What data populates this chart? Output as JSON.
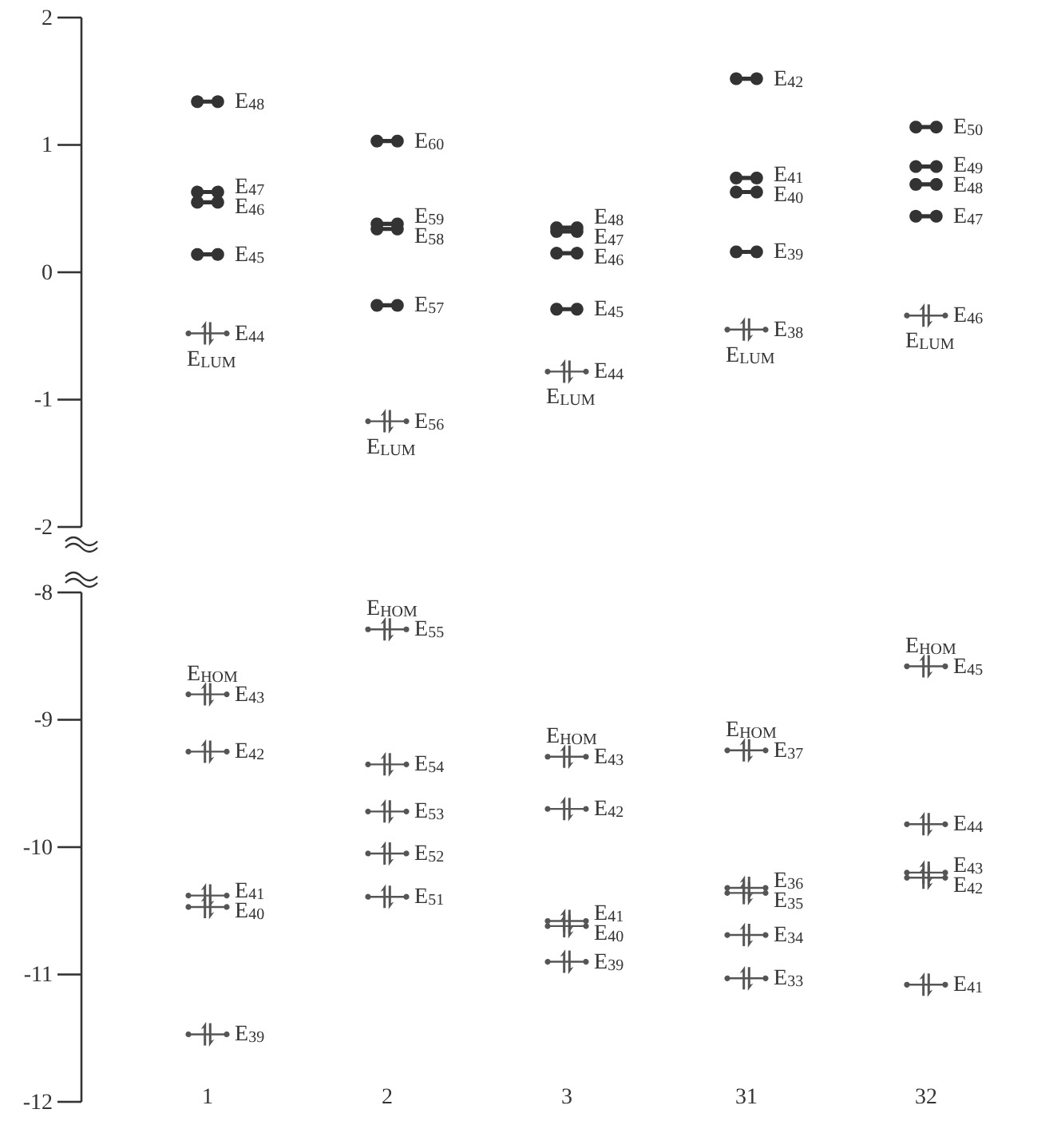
{
  "chart_data": [
    {
      "type": "scatter",
      "categories": [
        "1",
        "2",
        "3",
        "31",
        "32"
      ],
      "ylim": [
        -2,
        2
      ],
      "yticks": [
        -2,
        -1,
        0,
        1,
        2
      ],
      "tick_labels": "y",
      "series": [
        {
          "color": "#333333",
          "x": [
            "1",
            "1",
            "1",
            "1",
            "2",
            "2",
            "2",
            "2",
            "3",
            "3",
            "3",
            "3",
            "31",
            "31",
            "31",
            "31",
            "32",
            "32",
            "32",
            "32"
          ],
          "values": [
            1.34,
            0.63,
            0.55,
            0.14,
            1.03,
            0.38,
            0.34,
            -0.26,
            0.35,
            0.32,
            0.15,
            -0.29,
            1.52,
            0.74,
            0.63,
            0.16,
            1.14,
            0.83,
            0.69,
            0.44
          ]
        },
        {
          "color": "#555555",
          "marker": "cross",
          "x": [
            "1",
            "2",
            "3",
            "31",
            "32"
          ],
          "values": [
            -0.48,
            -1.17,
            -0.78,
            -0.45,
            -0.34
          ]
        }
      ],
      "annotations": [
        {
          "text": "E$_{48}$",
          "x": "1",
          "y": 1.34
        },
        {
          "text": "E$_{47}$",
          "x": "1",
          "y": 0.63
        },
        {
          "text": "E$_{46}$",
          "x": "1",
          "y": 0.55
        },
        {
          "text": "E$_{45}$",
          "x": "1",
          "y": 0.14
        },
        {
          "text": "E$_{44}$",
          "x": "1",
          "y": -0.48
        },
        {
          "text": "E$_{LUM}$",
          "x": "1",
          "y": -0.48
        },
        {
          "text": "E$_{60}$",
          "x": "2",
          "y": 1.03
        },
        {
          "text": "E$_{59}$",
          "x": "2",
          "y": 0.38
        },
        {
          "text": "E$_{58}$",
          "x": "2",
          "y": 0.34
        },
        {
          "text": "E$_{57}$",
          "x": "2",
          "y": -0.26
        },
        {
          "text": "E$_{56}$",
          "x": "2",
          "y": -1.17
        },
        {
          "text": "E$_{LUM}$",
          "x": "2",
          "y": -1.17
        },
        {
          "text": "E$_{48}$",
          "x": "3",
          "y": 0.35
        },
        {
          "text": "E$_{47}$",
          "x": "3",
          "y": 0.32
        },
        {
          "text": "E$_{46}$",
          "x": "3",
          "y": 0.15
        },
        {
          "text": "E$_{45}$",
          "x": "3",
          "y": -0.29
        },
        {
          "text": "E$_{44}$",
          "x": "3",
          "y": -0.78
        },
        {
          "text": "E$_{LUM}$",
          "x": "3",
          "y": -0.78
        },
        {
          "text": "E$_{42}$",
          "x": "31",
          "y": 1.52
        },
        {
          "text": "E$_{41}$",
          "x": "31",
          "y": 0.74
        },
        {
          "text": "E$_{40}$",
          "x": "31",
          "y": 0.63
        },
        {
          "text": "E$_{39}$",
          "x": "31",
          "y": 0.16
        },
        {
          "text": "E$_{38}$",
          "x": "31",
          "y": -0.45
        },
        {
          "text": "E$_{LUM}$",
          "x": "31",
          "y": -0.45
        },
        {
          "text": "E$_{50}$",
          "x": "32",
          "y": 1.14
        },
        {
          "text": "E$_{49}$",
          "x": "32",
          "y": 0.83
        },
        {
          "text": "E$_{48}$",
          "x": "32",
          "y": 0.69
        },
        {
          "text": "E$_{47}$",
          "x": "32",
          "y": 0.44
        },
        {
          "text": "E$_{46}$",
          "x": "32",
          "y": -0.34
        },
        {
          "text": "E$_{LUM}$",
          "x": "32",
          "y": -0.34
        }
      ]
    },
    {
      "type": "scatter",
      "categories": [
        "1",
        "2",
        "3",
        "31",
        "32"
      ],
      "ylim": [
        -12,
        -8
      ],
      "yticks": [
        -12,
        -11,
        -10,
        -9,
        -8
      ],
      "series": [
        {
          "color": "#555555",
          "marker": "cross",
          "x": [
            "1",
            "1",
            "1",
            "1",
            "1",
            "2",
            "2",
            "2",
            "2",
            "2",
            "3",
            "3",
            "3",
            "3",
            "3",
            "31",
            "31",
            "31",
            "31",
            "31",
            "32",
            "32",
            "32",
            "32",
            "32"
          ],
          "values": [
            -8.8,
            -9.25,
            -10.38,
            -10.47,
            -11.47,
            -8.29,
            -9.35,
            -9.72,
            -10.05,
            -10.39,
            -9.29,
            -9.7,
            -10.58,
            -10.62,
            -10.9,
            -9.24,
            -10.32,
            -10.36,
            -10.69,
            -11.03,
            -8.58,
            -9.82,
            -10.2,
            -10.24,
            -11.08
          ]
        }
      ],
      "annotations": [
        {
          "text": "E$_{43}$",
          "x": "1",
          "y": -8.8
        },
        {
          "text": "E$_{HOM}$",
          "x": "1",
          "y": -8.8
        },
        {
          "text": "E$_{42}$",
          "x": "1",
          "y": -9.25
        },
        {
          "text": "E$_{41}$",
          "x": "1",
          "y": -10.38
        },
        {
          "text": "E$_{40}$",
          "x": "1",
          "y": -10.47
        },
        {
          "text": "E$_{39}$",
          "x": "1",
          "y": -11.47
        },
        {
          "text": "E$_{55}$",
          "x": "2",
          "y": -8.29
        },
        {
          "text": "E$_{HOM}$",
          "x": "2",
          "y": -8.29
        },
        {
          "text": "E$_{54}$",
          "x": "2",
          "y": -9.35
        },
        {
          "text": "E$_{53}$",
          "x": "2",
          "y": -9.72
        },
        {
          "text": "E$_{52}$",
          "x": "2",
          "y": -10.05
        },
        {
          "text": "E$_{51}$",
          "x": "2",
          "y": -10.39
        },
        {
          "text": "E$_{43}$",
          "x": "3",
          "y": -9.29
        },
        {
          "text": "E$_{HOM}$",
          "x": "3",
          "y": -9.29
        },
        {
          "text": "E$_{42}$",
          "x": "3",
          "y": -9.7
        },
        {
          "text": "E$_{41}$",
          "x": "3",
          "y": -10.58
        },
        {
          "text": "E$_{40}$",
          "x": "3",
          "y": -10.62
        },
        {
          "text": "E$_{39}$",
          "x": "3",
          "y": -10.9
        },
        {
          "text": "E$_{37}$",
          "x": "31",
          "y": -9.24
        },
        {
          "text": "E$_{HOM}$",
          "x": "31",
          "y": -9.24
        },
        {
          "text": "E$_{36}$",
          "x": "31",
          "y": -10.32
        },
        {
          "text": "E$_{35}$",
          "x": "31",
          "y": -10.36
        },
        {
          "text": "E$_{34}$",
          "x": "31",
          "y": -10.69
        },
        {
          "text": "E$_{33}$",
          "x": "31",
          "y": -11.03
        },
        {
          "text": "E$_{45}$",
          "x": "32",
          "y": -8.58
        },
        {
          "text": "E$_{HOM}$",
          "x": "32",
          "y": -8.58
        },
        {
          "text": "E$_{44}$",
          "x": "32",
          "y": -9.82
        },
        {
          "text": "E$_{43}$",
          "x": "32",
          "y": -10.2
        },
        {
          "text": "E$_{42}$",
          "x": "32",
          "y": -10.24
        },
        {
          "text": "E$_{41}$",
          "x": "32",
          "y": -11.08
        }
      ]
    }
  ]
}
